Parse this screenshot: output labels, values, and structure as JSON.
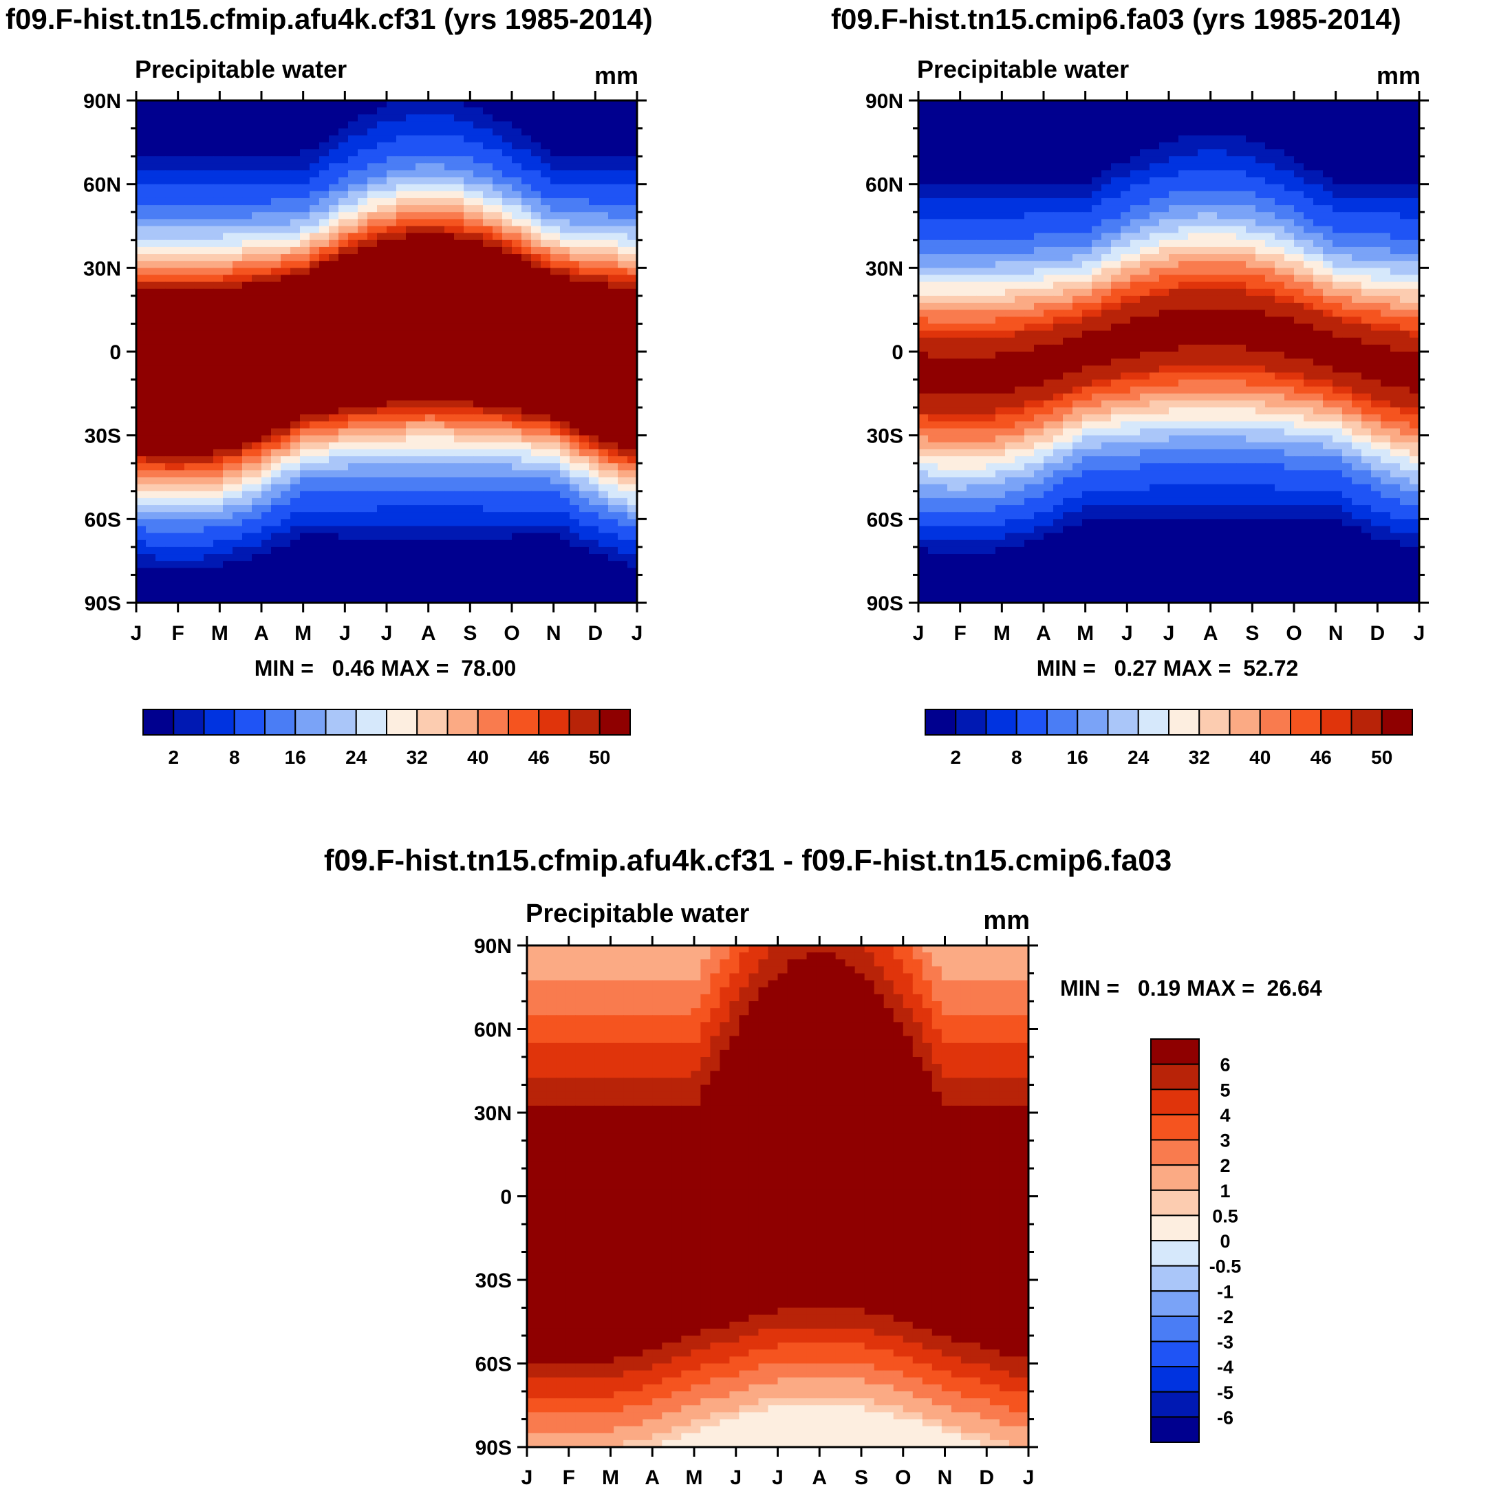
{
  "palette": [
    "#00008f",
    "#0019b3",
    "#0033e0",
    "#1f54f5",
    "#4a7df5",
    "#7aa3f7",
    "#aac6f9",
    "#d6e8fb",
    "#fdeee0",
    "#fcccb0",
    "#fbaa84",
    "#f97b4e",
    "#f5541f",
    "#e0340b",
    "#b82308",
    "#8f0000"
  ],
  "chart_data": [
    {
      "id": "panel_a",
      "type": "heatmap",
      "title": "f09.F-hist.tn15.cfmip.afu4k.cf31 (yrs 1985-2014)",
      "subtitle_left": "Precipitable water",
      "units": "mm",
      "x_tick_labels": [
        "J",
        "F",
        "M",
        "A",
        "M",
        "J",
        "J",
        "A",
        "S",
        "O",
        "N",
        "D",
        "J"
      ],
      "y_tick_labels": [
        "90N",
        "60N",
        "30N",
        "0",
        "30S",
        "60S",
        "90S"
      ],
      "y_tick_values": [
        90,
        60,
        30,
        0,
        -30,
        -60,
        -90
      ],
      "stats_label": "MIN =   0.46 MAX =  78.00",
      "min": 0.46,
      "max": 78.0,
      "contour_levels": [
        1,
        2,
        4,
        8,
        12,
        16,
        20,
        24,
        28,
        32,
        36,
        40,
        44,
        46,
        50
      ],
      "colorbar_labels": [
        "2",
        "8",
        "16",
        "24",
        "32",
        "40",
        "46",
        "50"
      ],
      "colorbar_label_indices": [
        1,
        3,
        5,
        7,
        9,
        11,
        13,
        15
      ]
    },
    {
      "id": "panel_b",
      "type": "heatmap",
      "title": "f09.F-hist.tn15.cmip6.fa03 (yrs 1985-2014)",
      "subtitle_left": "Precipitable water",
      "units": "mm",
      "x_tick_labels": [
        "J",
        "F",
        "M",
        "A",
        "M",
        "J",
        "J",
        "A",
        "S",
        "O",
        "N",
        "D",
        "J"
      ],
      "y_tick_labels": [
        "90N",
        "60N",
        "30N",
        "0",
        "30S",
        "60S",
        "90S"
      ],
      "y_tick_values": [
        90,
        60,
        30,
        0,
        -30,
        -60,
        -90
      ],
      "stats_label": "MIN =   0.27 MAX =  52.72",
      "min": 0.27,
      "max": 52.72,
      "contour_levels": [
        1,
        2,
        4,
        8,
        12,
        16,
        20,
        24,
        28,
        32,
        36,
        40,
        44,
        46,
        50
      ],
      "colorbar_labels": [
        "2",
        "8",
        "16",
        "24",
        "32",
        "40",
        "46",
        "50"
      ],
      "colorbar_label_indices": [
        1,
        3,
        5,
        7,
        9,
        11,
        13,
        15
      ]
    },
    {
      "id": "panel_diff",
      "type": "heatmap",
      "title": "f09.F-hist.tn15.cfmip.afu4k.cf31 - f09.F-hist.tn15.cmip6.fa03",
      "subtitle_left": "Precipitable water",
      "units": "mm",
      "x_tick_labels": [
        "J",
        "F",
        "M",
        "A",
        "M",
        "J",
        "J",
        "A",
        "S",
        "O",
        "N",
        "D",
        "J"
      ],
      "y_tick_labels": [
        "90N",
        "60N",
        "30N",
        "0",
        "30S",
        "60S",
        "90S"
      ],
      "y_tick_values": [
        90,
        60,
        30,
        0,
        -30,
        -60,
        -90
      ],
      "stats_label": "MIN =   0.19 MAX =  26.64",
      "min": 0.19,
      "max": 26.64,
      "contour_levels": [
        -6,
        -5,
        -4,
        -3,
        -2,
        -1,
        -0.5,
        0,
        0.5,
        1,
        2,
        3,
        4,
        5,
        6
      ],
      "colorbar_labels": [
        "6",
        "5",
        "4",
        "3",
        "2",
        "1",
        "0.5",
        "0",
        "-0.5",
        "-1",
        "-2",
        "-3",
        "-4",
        "-5",
        "-6"
      ],
      "colorbar_orientation": "vertical"
    }
  ]
}
